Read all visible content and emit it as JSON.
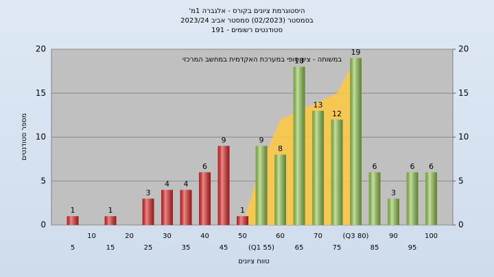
{
  "chart_data": {
    "type": "bar",
    "title": "היסטוגרמת ציונים בקורס - אלגברה 1מ'",
    "subtitle": "בסמסטר  (02/2023)  סמסטר אביב  2023/24",
    "subtitle2": "סטודנטים רשומים - 191",
    "annotation": "במשותה - ציון סופי במערכת האקדמית במחשב המרכזי",
    "x_label": "טווח ציונים",
    "y_label": "מספר סטודנטים",
    "categories": [
      "5",
      "10",
      "15",
      "20",
      "25",
      "30",
      "35",
      "40",
      "45",
      "50",
      "(Q1 55)",
      "60",
      "65",
      "70",
      "75",
      "(Q3 80)",
      "85",
      "90",
      "95",
      "100"
    ],
    "series": [
      {
        "color": "#e02828",
        "values": [
          1,
          0,
          1,
          0,
          3,
          4,
          4,
          6,
          9,
          1,
          null,
          null,
          null,
          null,
          null,
          null,
          null,
          null,
          null,
          null
        ]
      },
      {
        "color": "#94c850",
        "values": [
          null,
          null,
          null,
          null,
          null,
          null,
          null,
          null,
          null,
          null,
          9,
          8,
          18,
          13,
          12,
          19,
          6,
          3,
          6,
          6
        ]
      }
    ],
    "area": {
      "color": "#ffc840",
      "values": [
        null,
        null,
        null,
        null,
        null,
        null,
        null,
        null,
        null,
        0,
        7,
        12,
        13,
        14,
        15,
        19,
        null,
        null,
        null,
        null
      ]
    },
    "ylim": [
      0,
      20
    ],
    "yticks": [
      0,
      5,
      10,
      15,
      20
    ],
    "y2lim": [
      0,
      20
    ],
    "y2ticks": [
      0,
      5,
      10,
      15,
      20
    ],
    "grid": true
  }
}
